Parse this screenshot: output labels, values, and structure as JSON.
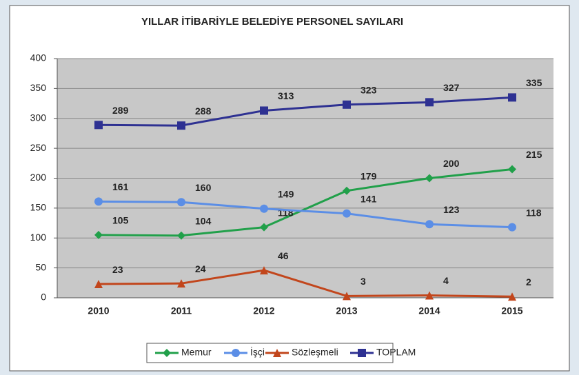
{
  "chart_data": {
    "type": "line",
    "title": "YILLAR İTİBARİYLE BELEDİYE PERSONEL SAYILARI",
    "categories": [
      "2010",
      "2011",
      "2012",
      "2013",
      "2014",
      "2015"
    ],
    "series": [
      {
        "name": "Memur",
        "color": "#21a04a",
        "marker": "diamond",
        "values": [
          105,
          104,
          118,
          179,
          200,
          215
        ]
      },
      {
        "name": "İşçi",
        "color": "#5b8ee6",
        "marker": "circle",
        "values": [
          161,
          160,
          149,
          141,
          123,
          118
        ]
      },
      {
        "name": "Sözleşmeli",
        "color": "#c2461c",
        "marker": "triangle",
        "values": [
          23,
          24,
          46,
          3,
          4,
          2
        ]
      },
      {
        "name": "TOPLAM",
        "color": "#2e3192",
        "marker": "square",
        "values": [
          289,
          288,
          313,
          323,
          327,
          335
        ]
      }
    ],
    "ylim": [
      0,
      400
    ],
    "yticks": [
      0,
      50,
      100,
      150,
      200,
      250,
      300,
      350,
      400
    ],
    "grid": true,
    "legend": "bottom"
  }
}
